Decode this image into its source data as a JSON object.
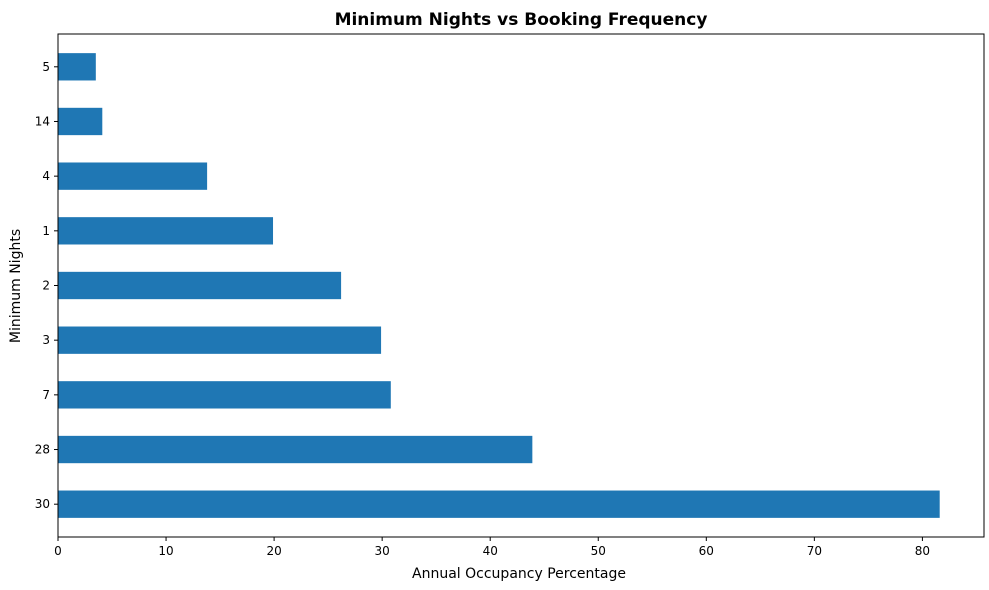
{
  "chart_data": {
    "type": "bar",
    "orientation": "horizontal",
    "title": "Minimum Nights vs Booking Frequency",
    "xlabel": "Annual Occupancy Percentage",
    "ylabel": "Minimum Nights",
    "categories": [
      "30",
      "28",
      "7",
      "3",
      "2",
      "1",
      "4",
      "14",
      "5"
    ],
    "values": [
      81.6,
      43.9,
      30.8,
      29.9,
      26.2,
      19.9,
      13.8,
      4.1,
      3.5
    ],
    "xlim": [
      0,
      85.7
    ],
    "xticks": [
      0,
      10,
      20,
      30,
      40,
      50,
      60,
      70,
      80
    ],
    "grid": false,
    "bar_color": "#1f77b4"
  }
}
